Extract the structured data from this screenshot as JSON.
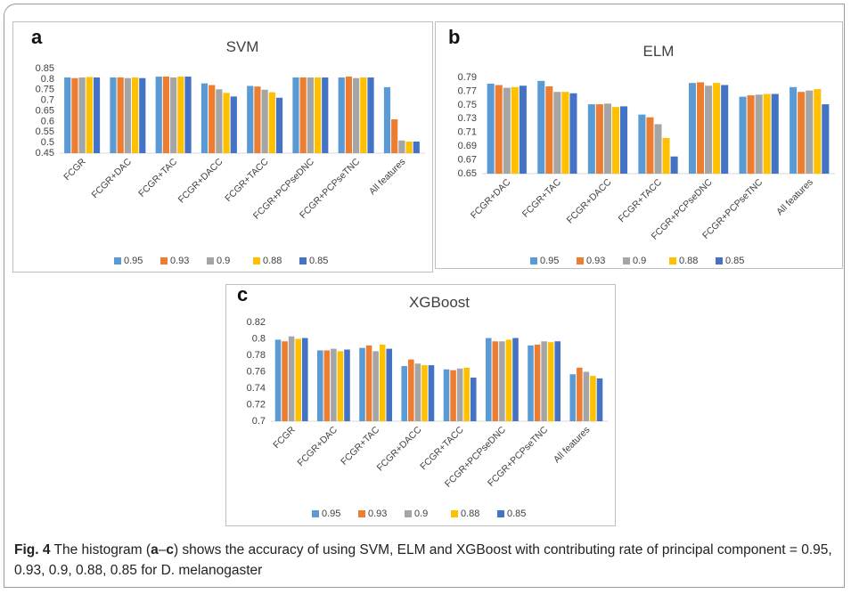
{
  "chart_data": [
    {
      "type": "bar",
      "panel_label": "a",
      "title": "SVM",
      "categories": [
        "FCGR",
        "FCGR+DAC",
        "FCGR+TAC",
        "FCGR+DACC",
        "FCGR+TACC",
        "FCGR+PCPseDNC",
        "FCGR+PCPseTNC",
        "All features"
      ],
      "series": [
        {
          "name": "0.95",
          "color": "#5b9bd5",
          "values": [
            0.808,
            0.808,
            0.812,
            0.78,
            0.768,
            0.808,
            0.808,
            0.762
          ]
        },
        {
          "name": "0.93",
          "color": "#ed7d31",
          "values": [
            0.805,
            0.808,
            0.812,
            0.772,
            0.765,
            0.808,
            0.812,
            0.61
          ]
        },
        {
          "name": "0.9",
          "color": "#a5a5a5",
          "values": [
            0.808,
            0.805,
            0.808,
            0.752,
            0.75,
            0.808,
            0.805,
            0.51
          ]
        },
        {
          "name": "0.88",
          "color": "#ffc000",
          "values": [
            0.81,
            0.808,
            0.812,
            0.735,
            0.738,
            0.808,
            0.808,
            0.505
          ]
        },
        {
          "name": "0.85",
          "color": "#4472c4",
          "values": [
            0.808,
            0.805,
            0.812,
            0.718,
            0.712,
            0.808,
            0.808,
            0.505
          ]
        }
      ],
      "ylim": [
        0.45,
        0.85
      ],
      "yticks": [
        0.45,
        0.5,
        0.55,
        0.6,
        0.65,
        0.7,
        0.75,
        0.8,
        0.85
      ]
    },
    {
      "type": "bar",
      "panel_label": "b",
      "title": "ELM",
      "categories": [
        "FCGR+DAC",
        "FCGR+TAC",
        "FCGR+DACC",
        "FCGR+TACC",
        "FCGR+PCPseDNC",
        "FCGR+PCPseTNC",
        "All features"
      ],
      "series": [
        {
          "name": "0.95",
          "color": "#5b9bd5",
          "values": [
            0.781,
            0.785,
            0.751,
            0.736,
            0.782,
            0.762,
            0.776
          ]
        },
        {
          "name": "0.93",
          "color": "#ed7d31",
          "values": [
            0.779,
            0.777,
            0.751,
            0.732,
            0.783,
            0.764,
            0.769
          ]
        },
        {
          "name": "0.9",
          "color": "#a5a5a5",
          "values": [
            0.775,
            0.769,
            0.752,
            0.722,
            0.778,
            0.765,
            0.771
          ]
        },
        {
          "name": "0.88",
          "color": "#ffc000",
          "values": [
            0.776,
            0.769,
            0.747,
            0.702,
            0.782,
            0.766,
            0.773
          ]
        },
        {
          "name": "0.85",
          "color": "#4472c4",
          "values": [
            0.778,
            0.767,
            0.748,
            0.675,
            0.779,
            0.766,
            0.751
          ]
        }
      ],
      "ylim": [
        0.65,
        0.79
      ],
      "yticks": [
        0.65,
        0.67,
        0.69,
        0.71,
        0.73,
        0.75,
        0.77,
        0.79
      ]
    },
    {
      "type": "bar",
      "panel_label": "c",
      "title": "XGBoost",
      "categories": [
        "FCGR",
        "FCGR+DAC",
        "FCGR+TAC",
        "FCGR+DACC",
        "FCGR+TACC",
        "FCGR+PCPseDNC",
        "FCGR+PCPseTNC",
        "All features"
      ],
      "series": [
        {
          "name": "0.95",
          "color": "#5b9bd5",
          "values": [
            0.799,
            0.786,
            0.789,
            0.767,
            0.763,
            0.801,
            0.792,
            0.757
          ]
        },
        {
          "name": "0.93",
          "color": "#ed7d31",
          "values": [
            0.797,
            0.786,
            0.792,
            0.775,
            0.762,
            0.797,
            0.793,
            0.765
          ]
        },
        {
          "name": "0.9",
          "color": "#a5a5a5",
          "values": [
            0.803,
            0.788,
            0.785,
            0.77,
            0.764,
            0.797,
            0.797,
            0.76
          ]
        },
        {
          "name": "0.88",
          "color": "#ffc000",
          "values": [
            0.8,
            0.785,
            0.793,
            0.768,
            0.765,
            0.799,
            0.796,
            0.755
          ]
        },
        {
          "name": "0.85",
          "color": "#4472c4",
          "values": [
            0.801,
            0.787,
            0.788,
            0.768,
            0.753,
            0.801,
            0.797,
            0.752
          ]
        }
      ],
      "ylim": [
        0.7,
        0.82
      ],
      "yticks": [
        0.7,
        0.72,
        0.74,
        0.76,
        0.78,
        0.8,
        0.82
      ]
    }
  ],
  "caption": {
    "label": "Fig. 4",
    "parts": [
      " The histogram (",
      "a",
      "–",
      "c",
      ") shows the accuracy of using SVM, ELM and XGBoost with contributing rate of principal component = 0.95, 0.93, 0.9, 0.88, 0.85 for D. melanogaster"
    ]
  }
}
